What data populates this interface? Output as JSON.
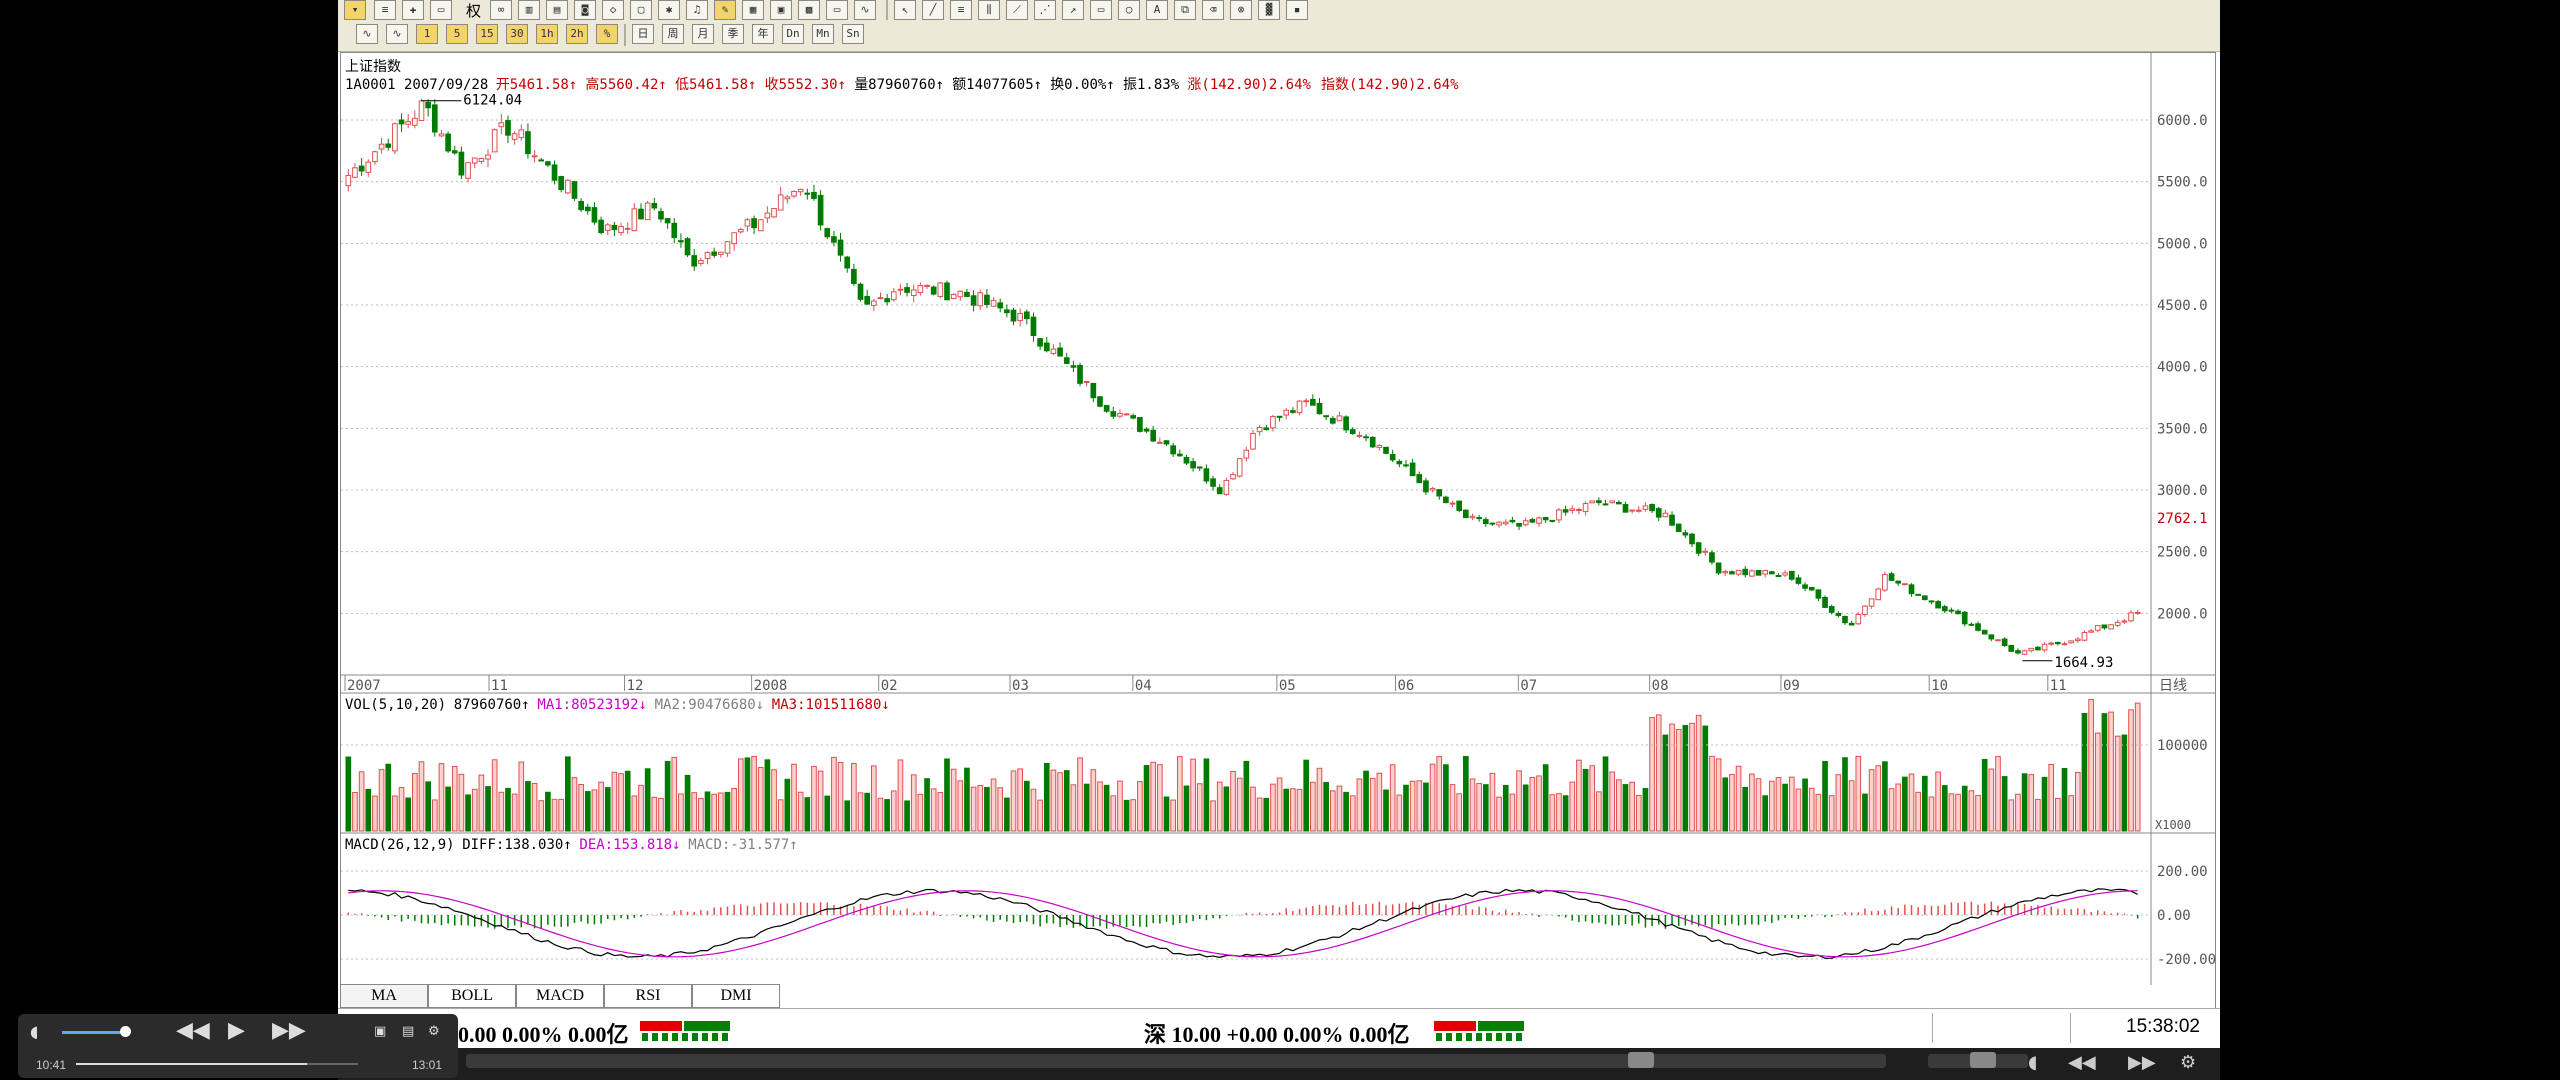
{
  "window": {
    "title": ""
  },
  "toolbar": {
    "row1_label": "权",
    "row2_buttons": [
      "1",
      "5",
      "15",
      "30",
      "1h",
      "2h",
      "%"
    ],
    "row2_period": [
      "日",
      "周",
      "月",
      "季",
      "年",
      "Dn",
      "Mn",
      "Sn"
    ]
  },
  "chart_header": {
    "index_name": "上证指数",
    "code_date": "1A0001 2007/09/28",
    "quote_items": [
      {
        "label": "开",
        "value": "5461.58",
        "arrow": "↑",
        "color": "#c00000"
      },
      {
        "label": "高",
        "value": "5560.42",
        "arrow": "↑",
        "color": "#c00000"
      },
      {
        "label": "低",
        "value": "5461.58",
        "arrow": "↑",
        "color": "#c00000"
      },
      {
        "label": "收",
        "value": "5552.30",
        "arrow": "↑",
        "color": "#c00000"
      },
      {
        "label": "量",
        "value": "87960760",
        "arrow": "↑",
        "color": "#000000"
      },
      {
        "label": "额",
        "value": "14077605",
        "arrow": "↑",
        "color": "#000000"
      },
      {
        "label": "换",
        "value": "0.00%",
        "arrow": "↑",
        "color": "#000000"
      },
      {
        "label": "振",
        "value": "1.83%",
        "arrow": "",
        "color": "#000000"
      }
    ],
    "change_text": "涨(142.90)2.64%",
    "index_change_text": "指数(142.90)2.64%"
  },
  "chart_data": [
    {
      "type": "line",
      "title": "上证指数",
      "period": "日线",
      "ylim": [
        1500,
        6300
      ],
      "y_ticks": [
        "6000.0",
        "5500.0",
        "5000.0",
        "4500.0",
        "4000.0",
        "3500.0",
        "3000.0",
        "2500.0",
        "2000.0"
      ],
      "x_tick_labels": [
        "2007",
        "11",
        "12",
        "2008",
        "02",
        "03",
        "04",
        "05",
        "06",
        "07",
        "08",
        "09",
        "10",
        "11"
      ],
      "high_label": "6124.04",
      "low_label": "1664.93",
      "last_price_label": "2762.1",
      "close_series": [
        {
          "date": "2007-09-28",
          "close": 5552
        },
        {
          "date": "2007-10-16",
          "close": 6124
        },
        {
          "date": "2007-10-25",
          "close": 5600
        },
        {
          "date": "2007-11-05",
          "close": 5950
        },
        {
          "date": "2007-11-28",
          "close": 5100
        },
        {
          "date": "2007-12-10",
          "close": 5300
        },
        {
          "date": "2007-12-18",
          "close": 4850
        },
        {
          "date": "2008-01-02",
          "close": 5150
        },
        {
          "date": "2008-01-14",
          "close": 5500
        },
        {
          "date": "2008-01-28",
          "close": 4450
        },
        {
          "date": "2008-02-05",
          "close": 4650
        },
        {
          "date": "2008-02-20",
          "close": 4600
        },
        {
          "date": "2008-03-05",
          "close": 4400
        },
        {
          "date": "2008-03-25",
          "close": 3700
        },
        {
          "date": "2008-04-10",
          "close": 3350
        },
        {
          "date": "2008-04-22",
          "close": 3000
        },
        {
          "date": "2008-04-30",
          "close": 3500
        },
        {
          "date": "2008-05-12",
          "close": 3700
        },
        {
          "date": "2008-05-26",
          "close": 3450
        },
        {
          "date": "2008-06-10",
          "close": 3000
        },
        {
          "date": "2008-06-20",
          "close": 2750
        },
        {
          "date": "2008-07-02",
          "close": 2700
        },
        {
          "date": "2008-07-20",
          "close": 2900
        },
        {
          "date": "2008-08-05",
          "close": 2800
        },
        {
          "date": "2008-08-18",
          "close": 2350
        },
        {
          "date": "2008-09-04",
          "close": 2300
        },
        {
          "date": "2008-09-18",
          "close": 1900
        },
        {
          "date": "2008-09-26",
          "close": 2300
        },
        {
          "date": "2008-10-10",
          "close": 2050
        },
        {
          "date": "2008-10-28",
          "close": 1664
        },
        {
          "date": "2008-11-10",
          "close": 1800
        },
        {
          "date": "2008-11-25",
          "close": 2000
        }
      ]
    },
    {
      "type": "bar",
      "title": "VOL(5,10,20)",
      "legend": [
        {
          "name": "87960760",
          "arrow": "↑",
          "color": "#000000"
        },
        {
          "name": "MA1:80523192",
          "arrow": "↓",
          "color": "#c800c8"
        },
        {
          "name": "MA2:90476680",
          "arrow": "↓",
          "color": "#808080"
        },
        {
          "name": "MA3:101511680",
          "arrow": "↓",
          "color": "#c00000"
        }
      ],
      "y_ticks": [
        "100000"
      ],
      "unit_label": "X1000"
    },
    {
      "type": "line",
      "title": "MACD(26,12,9)",
      "legend": [
        {
          "name": "DIFF:138.030",
          "arrow": "↑",
          "color": "#000000"
        },
        {
          "name": "DEA:153.818",
          "arrow": "↓",
          "color": "#c800c8"
        },
        {
          "name": "MACD:-31.577",
          "arrow": "↑",
          "color": "#808080"
        }
      ],
      "y_ticks": [
        "200.00",
        "0.00",
        "-200.00"
      ]
    }
  ],
  "indicator_tabs": [
    "MA",
    "BOLL",
    "MACD",
    "RSI",
    "DMI"
  ],
  "status_bar": {
    "sh_text": "0.00 0.00% 0.00亿",
    "sz_text": "深 10.00 +0.00 0.00% 0.00亿",
    "clock": "15:38:02"
  },
  "player": {
    "current_time": "10:41",
    "total_time": "13:01"
  },
  "colors": {
    "up": "#e05050",
    "down": "#007a00",
    "accent": "#c800c8"
  }
}
